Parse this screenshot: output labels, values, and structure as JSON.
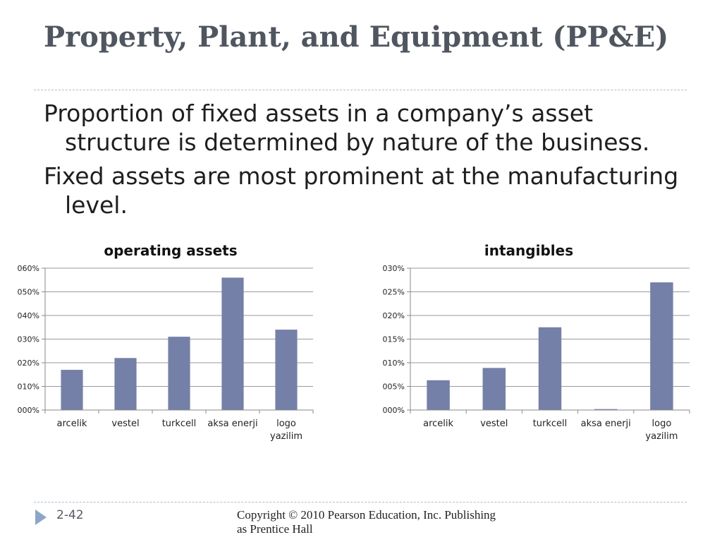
{
  "slide": {
    "title": "Property, Plant, and Equipment (PP&E)",
    "bullets": [
      "Proportion of fixed assets in a company’s asset structure is determined by nature of the business.",
      "Fixed assets are most prominent at the manufacturing level."
    ],
    "slide_number": "2-42",
    "copyright": "Copyright © 2010 Pearson Education, Inc. Publishing as Prentice Hall"
  },
  "colors": {
    "bar": "#7580a8",
    "title": "#505660",
    "rule": "#aebccd",
    "arrow": "#8ea6c6"
  },
  "chart_data": [
    {
      "type": "bar",
      "title": "operating assets",
      "categories": [
        "arcelik",
        "vestel",
        "turkcell",
        "aksa enerji",
        "logo yazilim"
      ],
      "values": [
        0.17,
        0.22,
        0.31,
        0.56,
        0.34
      ],
      "ylim": [
        0,
        0.6
      ],
      "yticks": [
        "000%",
        "010%",
        "020%",
        "030%",
        "040%",
        "050%",
        "060%"
      ],
      "grid": true,
      "legend": "none"
    },
    {
      "type": "bar",
      "title": "intangibles",
      "categories": [
        "arcelik",
        "vestel",
        "turkcell",
        "aksa enerji",
        "logo yazilim"
      ],
      "values": [
        0.063,
        0.089,
        0.175,
        0.002,
        0.27
      ],
      "ylim": [
        0,
        0.3
      ],
      "yticks": [
        "000%",
        "005%",
        "010%",
        "015%",
        "020%",
        "025%",
        "030%"
      ],
      "grid": true,
      "legend": "none"
    }
  ]
}
